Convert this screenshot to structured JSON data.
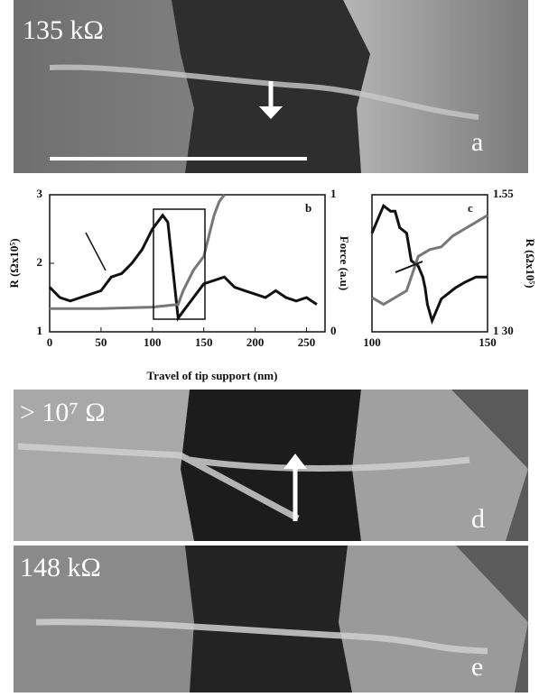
{
  "panels": {
    "a": {
      "caption": "135 kΩ",
      "letter": "a"
    },
    "d": {
      "caption": "> 10⁷ Ω",
      "letter": "d"
    },
    "e": {
      "caption": "148 kΩ",
      "letter": "e"
    }
  },
  "chart_data": [
    {
      "type": "line",
      "panel_label": "b",
      "xlabel": "Travel of tip support (nm)",
      "ylabel": "R (Ωx10⁵)",
      "y2label": "Force (a.u)",
      "xlim": [
        0,
        268
      ],
      "xticks": [
        0,
        50,
        100,
        150,
        200,
        250
      ],
      "ylim": [
        1,
        3
      ],
      "yticks": [
        1,
        2,
        3
      ],
      "y2lim": [
        0,
        1
      ],
      "y2ticks": [
        0,
        1
      ],
      "series": [
        {
          "color": "#111111",
          "axis": "y",
          "x": [
            0,
            10,
            20,
            30,
            40,
            50,
            60,
            70,
            80,
            90,
            100,
            110,
            115,
            120,
            125,
            130,
            140,
            150,
            160,
            170,
            180,
            190,
            200,
            210,
            220,
            230,
            240,
            250,
            260
          ],
          "values": [
            1.65,
            1.5,
            1.45,
            1.5,
            1.55,
            1.6,
            1.8,
            1.85,
            2.0,
            2.2,
            2.5,
            2.7,
            2.6,
            1.9,
            1.2,
            1.3,
            1.5,
            1.7,
            1.75,
            1.8,
            1.65,
            1.6,
            1.55,
            1.5,
            1.6,
            1.5,
            1.45,
            1.5,
            1.4
          ]
        },
        {
          "color": "#777777",
          "axis": "y2",
          "x": [
            0,
            50,
            100,
            125,
            130,
            140,
            150,
            155,
            160,
            165,
            170
          ],
          "values": [
            0.17,
            0.17,
            0.18,
            0.2,
            0.3,
            0.45,
            0.55,
            0.7,
            0.85,
            0.95,
            1.0
          ]
        }
      ]
    },
    {
      "type": "line",
      "panel_label": "c",
      "y2label": "R (Ωx10⁵)",
      "xlim": [
        100,
        150
      ],
      "xticks": [
        100,
        150
      ],
      "ylim": [
        0,
        1
      ],
      "y2lim": [
        1.3,
        1.55
      ],
      "y2ticks": [
        {
          "value": 1.3,
          "label": "1 30"
        },
        1.55
      ],
      "series": [
        {
          "color": "#111111",
          "axis": "y2",
          "x": [
            100,
            102,
            105,
            108,
            110,
            112,
            115,
            117,
            120,
            122,
            123,
            124,
            126,
            128,
            130,
            133,
            136,
            140,
            145,
            150
          ],
          "values": [
            1.48,
            1.5,
            1.53,
            1.52,
            1.52,
            1.49,
            1.48,
            1.43,
            1.42,
            1.4,
            1.38,
            1.35,
            1.32,
            1.34,
            1.36,
            1.37,
            1.38,
            1.39,
            1.4,
            1.4
          ]
        },
        {
          "color": "#777777",
          "axis": "y",
          "x": [
            100,
            105,
            110,
            115,
            118,
            120,
            125,
            130,
            135,
            140,
            145,
            150
          ],
          "values": [
            0.25,
            0.2,
            0.25,
            0.3,
            0.45,
            0.55,
            0.6,
            0.62,
            0.7,
            0.75,
            0.8,
            0.85
          ]
        }
      ]
    }
  ]
}
